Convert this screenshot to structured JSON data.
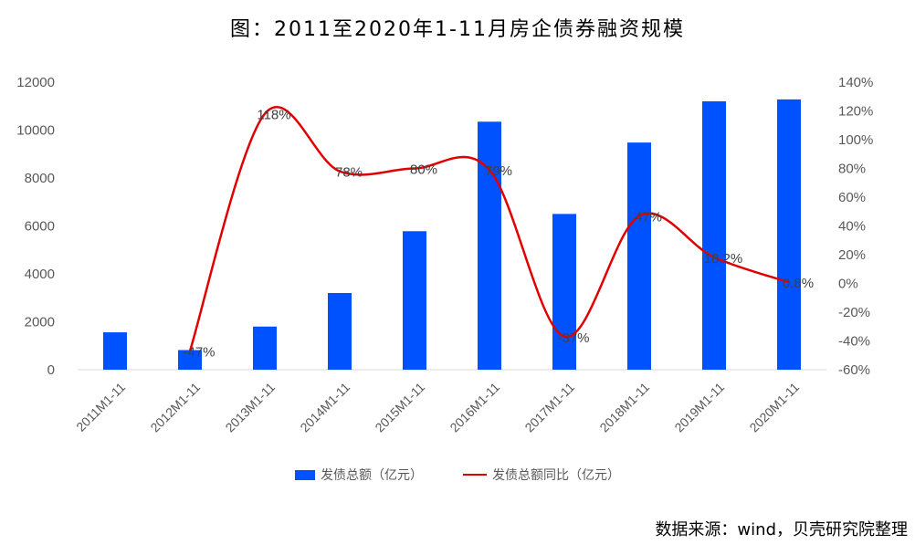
{
  "chart_data": {
    "type": "bar+line",
    "title": "图：2011至2020年1-11月房企债券融资规模",
    "categories": [
      "2011M1-11",
      "2012M1-11",
      "2013M1-11",
      "2014M1-11",
      "2015M1-11",
      "2016M1-11",
      "2017M1-11",
      "2018M1-11",
      "2019M1-11",
      "2020M1-11"
    ],
    "series": [
      {
        "name": "发债总额（亿元）",
        "type": "bar",
        "axis": "left",
        "color": "#0052FF",
        "values": [
          1560,
          820,
          1800,
          3200,
          5780,
          10350,
          6500,
          9480,
          11200,
          11280
        ]
      },
      {
        "name": "发债总额同比（亿元）",
        "type": "line",
        "axis": "right",
        "color": "#E00000",
        "values": [
          null,
          -47,
          118,
          78,
          80,
          79,
          -37,
          47,
          18.2,
          0.8
        ],
        "labels": [
          "",
          "-47%",
          "118%",
          "78%",
          "80%",
          "79%",
          "-37%",
          "47%",
          "18.2%",
          "0.8%"
        ]
      }
    ],
    "ylim_left": [
      0,
      12000
    ],
    "yticks_left": [
      0,
      2000,
      4000,
      6000,
      8000,
      10000,
      12000
    ],
    "ylim_right": [
      -60,
      140
    ],
    "yticks_right": [
      "-60%",
      "-40%",
      "-20%",
      "0%",
      "20%",
      "40%",
      "60%",
      "80%",
      "100%",
      "120%",
      "140%"
    ],
    "legend_position": "bottom",
    "grid": false
  },
  "source": "数据来源：wind，贝壳研究院整理"
}
